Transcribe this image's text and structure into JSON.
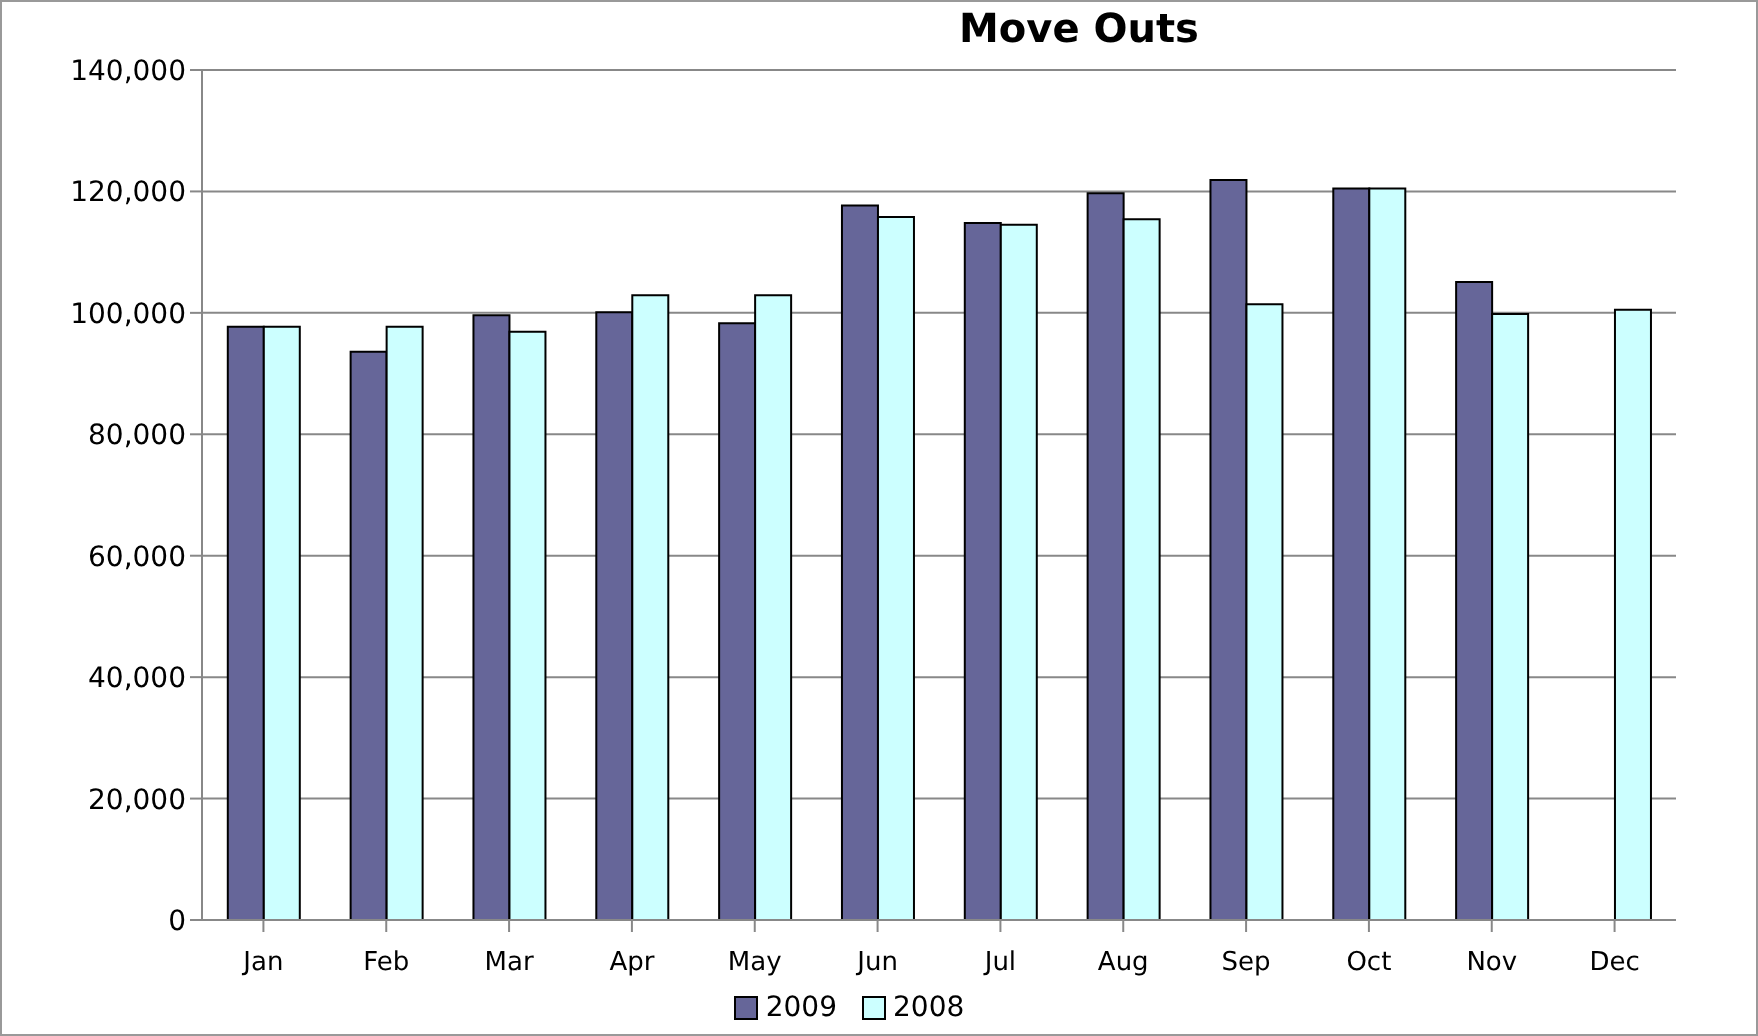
{
  "chart_data": {
    "type": "bar",
    "title": "Move Outs",
    "categories": [
      "Jan",
      "Feb",
      "Mar",
      "Apr",
      "May",
      "Jun",
      "Jul",
      "Aug",
      "Sep",
      "Oct",
      "Nov",
      "Dec"
    ],
    "series": [
      {
        "name": "2009",
        "color": "#666699",
        "values": [
          97700,
          93600,
          99600,
          100100,
          98300,
          117700,
          114800,
          119700,
          121900,
          120500,
          105100,
          null
        ]
      },
      {
        "name": "2008",
        "color": "#ccffff",
        "values": [
          97700,
          97700,
          96900,
          102900,
          102900,
          115800,
          114500,
          115400,
          101400,
          120500,
          99800,
          100500
        ]
      }
    ],
    "ylim": [
      0,
      140000
    ],
    "yticks": [
      0,
      {
        "value": 20000,
        "label": "20,000"
      },
      {
        "value": 40000,
        "label": "40,000"
      },
      {
        "value": 60000,
        "label": "60,000"
      },
      {
        "value": 80000,
        "label": "80,000"
      },
      {
        "value": 100000,
        "label": "100,000"
      },
      {
        "value": 120000,
        "label": "120,000"
      },
      {
        "value": 140000,
        "label": "140,000"
      }
    ],
    "grid": "y",
    "legend": "bottom"
  }
}
